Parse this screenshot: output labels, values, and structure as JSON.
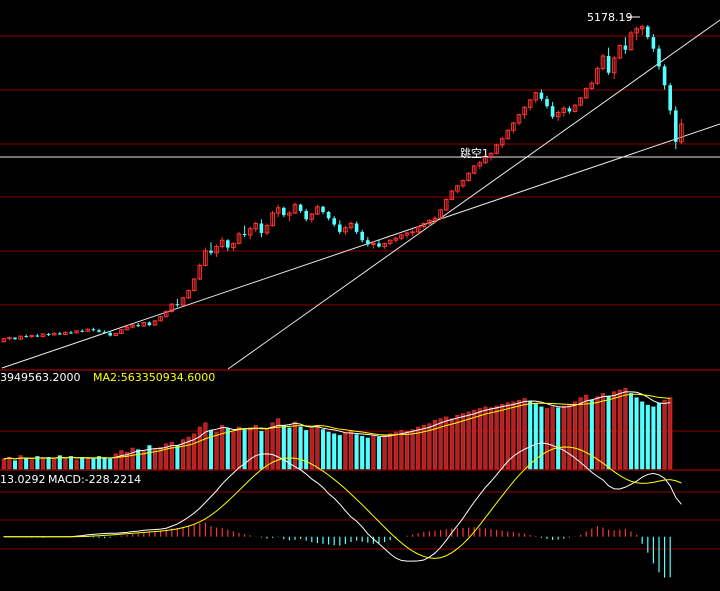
{
  "chart_data": [
    {
      "panel": "price",
      "type": "candlestick",
      "annotations": {
        "high_label": "5178.19",
        "gap_label": "跳空1"
      },
      "trendlines": [
        {
          "name": "long-support",
          "from": [
            0,
            2350
          ],
          "to": [
            160,
            4300
          ]
        },
        {
          "name": "steep-support",
          "from": [
            45,
            1300
          ],
          "to": [
            160,
            5180
          ]
        },
        {
          "name": "gap-level",
          "value": 4000
        }
      ],
      "ohlc": [
        [
          2150,
          2185,
          2145,
          2180
        ],
        [
          2180,
          2200,
          2165,
          2190
        ],
        [
          2190,
          2195,
          2170,
          2175
        ],
        [
          2175,
          2210,
          2170,
          2205
        ],
        [
          2205,
          2220,
          2190,
          2200
        ],
        [
          2200,
          2215,
          2185,
          2210
        ],
        [
          2210,
          2225,
          2195,
          2200
        ],
        [
          2200,
          2230,
          2195,
          2225
        ],
        [
          2225,
          2235,
          2205,
          2215
        ],
        [
          2215,
          2240,
          2210,
          2230
        ],
        [
          2230,
          2245,
          2215,
          2220
        ],
        [
          2220,
          2250,
          2215,
          2240
        ],
        [
          2240,
          2255,
          2225,
          2235
        ],
        [
          2235,
          2260,
          2230,
          2255
        ],
        [
          2255,
          2270,
          2240,
          2250
        ],
        [
          2250,
          2280,
          2245,
          2270
        ],
        [
          2270,
          2285,
          2250,
          2260
        ],
        [
          2260,
          2275,
          2240,
          2245
        ],
        [
          2245,
          2260,
          2225,
          2235
        ],
        [
          2235,
          2250,
          2200,
          2210
        ],
        [
          2210,
          2235,
          2205,
          2230
        ],
        [
          2230,
          2270,
          2225,
          2265
        ],
        [
          2265,
          2300,
          2260,
          2290
        ],
        [
          2290,
          2320,
          2280,
          2310
        ],
        [
          2310,
          2330,
          2290,
          2300
        ],
        [
          2300,
          2340,
          2295,
          2335
        ],
        [
          2335,
          2345,
          2300,
          2310
        ],
        [
          2310,
          2360,
          2305,
          2350
        ],
        [
          2350,
          2400,
          2345,
          2390
        ],
        [
          2390,
          2450,
          2385,
          2440
        ],
        [
          2440,
          2520,
          2430,
          2510
        ],
        [
          2510,
          2560,
          2480,
          2500
        ],
        [
          2500,
          2580,
          2495,
          2570
        ],
        [
          2570,
          2650,
          2560,
          2640
        ],
        [
          2640,
          2760,
          2630,
          2750
        ],
        [
          2750,
          2900,
          2740,
          2880
        ],
        [
          2880,
          3050,
          2870,
          3020
        ],
        [
          3020,
          3100,
          2980,
          3000
        ],
        [
          3000,
          3080,
          2960,
          3060
        ],
        [
          3060,
          3150,
          3040,
          3120
        ],
        [
          3120,
          3130,
          3020,
          3050
        ],
        [
          3050,
          3100,
          3020,
          3090
        ],
        [
          3090,
          3200,
          3080,
          3180
        ],
        [
          3180,
          3260,
          3150,
          3170
        ],
        [
          3170,
          3250,
          3130,
          3230
        ],
        [
          3230,
          3300,
          3200,
          3280
        ],
        [
          3280,
          3320,
          3150,
          3190
        ],
        [
          3190,
          3280,
          3170,
          3260
        ],
        [
          3260,
          3400,
          3250,
          3380
        ],
        [
          3380,
          3460,
          3340,
          3430
        ],
        [
          3430,
          3440,
          3340,
          3360
        ],
        [
          3360,
          3400,
          3300,
          3380
        ],
        [
          3380,
          3480,
          3370,
          3460
        ],
        [
          3460,
          3470,
          3380,
          3400
        ],
        [
          3400,
          3420,
          3300,
          3320
        ],
        [
          3320,
          3380,
          3290,
          3370
        ],
        [
          3370,
          3460,
          3360,
          3440
        ],
        [
          3440,
          3450,
          3370,
          3390
        ],
        [
          3390,
          3400,
          3310,
          3330
        ],
        [
          3330,
          3350,
          3250,
          3270
        ],
        [
          3270,
          3310,
          3180,
          3200
        ],
        [
          3200,
          3260,
          3170,
          3240
        ],
        [
          3240,
          3300,
          3220,
          3280
        ],
        [
          3280,
          3300,
          3180,
          3200
        ],
        [
          3200,
          3220,
          3100,
          3120
        ],
        [
          3120,
          3150,
          3060,
          3080
        ],
        [
          3080,
          3110,
          3040,
          3090
        ],
        [
          3090,
          3120,
          3050,
          3060
        ],
        [
          3060,
          3100,
          3040,
          3090
        ],
        [
          3090,
          3130,
          3070,
          3120
        ],
        [
          3120,
          3150,
          3100,
          3140
        ],
        [
          3140,
          3180,
          3120,
          3170
        ],
        [
          3170,
          3200,
          3140,
          3190
        ],
        [
          3190,
          3220,
          3160,
          3200
        ],
        [
          3200,
          3260,
          3180,
          3250
        ],
        [
          3250,
          3290,
          3230,
          3280
        ],
        [
          3280,
          3320,
          3250,
          3310
        ],
        [
          3310,
          3350,
          3280,
          3330
        ],
        [
          3330,
          3420,
          3320,
          3410
        ],
        [
          3410,
          3520,
          3400,
          3510
        ],
        [
          3510,
          3600,
          3500,
          3590
        ],
        [
          3590,
          3650,
          3570,
          3640
        ],
        [
          3640,
          3700,
          3620,
          3690
        ],
        [
          3690,
          3770,
          3680,
          3760
        ],
        [
          3760,
          3840,
          3750,
          3830
        ],
        [
          3830,
          3880,
          3800,
          3860
        ],
        [
          3860,
          3940,
          3850,
          3920
        ],
        [
          3920,
          3960,
          3880,
          3950
        ],
        [
          3950,
          4040,
          3940,
          4030
        ],
        [
          4030,
          4110,
          4000,
          4090
        ],
        [
          4090,
          4180,
          4080,
          4170
        ],
        [
          4170,
          4250,
          4140,
          4240
        ],
        [
          4240,
          4330,
          4220,
          4320
        ],
        [
          4320,
          4400,
          4280,
          4390
        ],
        [
          4390,
          4470,
          4360,
          4460
        ],
        [
          4460,
          4540,
          4430,
          4530
        ],
        [
          4530,
          4560,
          4450,
          4470
        ],
        [
          4470,
          4500,
          4380,
          4400
        ],
        [
          4400,
          4440,
          4280,
          4300
        ],
        [
          4300,
          4360,
          4260,
          4340
        ],
        [
          4340,
          4400,
          4300,
          4380
        ],
        [
          4380,
          4400,
          4330,
          4350
        ],
        [
          4350,
          4420,
          4340,
          4410
        ],
        [
          4410,
          4490,
          4400,
          4480
        ],
        [
          4480,
          4580,
          4470,
          4570
        ],
        [
          4570,
          4640,
          4550,
          4620
        ],
        [
          4620,
          4780,
          4600,
          4760
        ],
        [
          4760,
          4900,
          4740,
          4880
        ],
        [
          4880,
          4960,
          4700,
          4720
        ],
        [
          4720,
          4880,
          4660,
          4860
        ],
        [
          4860,
          4990,
          4850,
          4980
        ],
        [
          4980,
          5060,
          4900,
          4940
        ],
        [
          4940,
          5120,
          4930,
          5100
        ],
        [
          5100,
          5160,
          5030,
          5140
        ],
        [
          5140,
          5178,
          5080,
          5160
        ],
        [
          5160,
          5176,
          5040,
          5060
        ],
        [
          5060,
          5090,
          4920,
          4950
        ],
        [
          4950,
          4980,
          4750,
          4780
        ],
        [
          4780,
          4800,
          4560,
          4600
        ],
        [
          4600,
          4620,
          4320,
          4360
        ],
        [
          4360,
          4400,
          3990,
          4060
        ],
        [
          4060,
          4280,
          4040,
          4230
        ]
      ],
      "ylim": [
        1900,
        5300
      ]
    },
    {
      "panel": "volume",
      "type": "bar",
      "legend": {
        "ma1": "3949563.2000",
        "ma2": "MA2:563350934.6000"
      },
      "ylim": [
        0,
        100
      ],
      "values": [
        12,
        14,
        10,
        16,
        13,
        11,
        15,
        12,
        14,
        13,
        16,
        12,
        15,
        11,
        14,
        13,
        12,
        15,
        13,
        12,
        18,
        22,
        20,
        25,
        23,
        21,
        28,
        24,
        26,
        30,
        32,
        28,
        35,
        38,
        42,
        50,
        55,
        46,
        44,
        52,
        48,
        44,
        50,
        47,
        49,
        52,
        45,
        48,
        55,
        60,
        52,
        49,
        56,
        50,
        46,
        48,
        52,
        47,
        44,
        42,
        40,
        43,
        45,
        41,
        39,
        37,
        40,
        38,
        40,
        42,
        44,
        46,
        45,
        47,
        50,
        52,
        54,
        58,
        60,
        62,
        60,
        64,
        66,
        68,
        70,
        72,
        74,
        73,
        75,
        77,
        79,
        80,
        82,
        84,
        80,
        78,
        74,
        72,
        74,
        73,
        75,
        77,
        80,
        85,
        88,
        82,
        86,
        90,
        87,
        92,
        94,
        96,
        90,
        85,
        80,
        76,
        74,
        78,
        82,
        85
      ],
      "up": [
        1,
        1,
        0,
        1,
        0,
        1,
        0,
        1,
        0,
        1,
        0,
        1,
        0,
        1,
        0,
        1,
        0,
        0,
        0,
        0,
        1,
        1,
        1,
        1,
        0,
        1,
        0,
        1,
        1,
        1,
        1,
        0,
        1,
        1,
        1,
        1,
        1,
        0,
        1,
        1,
        0,
        1,
        1,
        0,
        1,
        1,
        0,
        1,
        1,
        1,
        0,
        0,
        1,
        0,
        0,
        1,
        1,
        0,
        0,
        0,
        0,
        1,
        1,
        0,
        0,
        0,
        1,
        0,
        1,
        1,
        1,
        1,
        1,
        1,
        1,
        1,
        1,
        1,
        1,
        1,
        1,
        1,
        1,
        1,
        1,
        1,
        1,
        1,
        1,
        1,
        1,
        1,
        1,
        1,
        0,
        0,
        0,
        1,
        1,
        0,
        1,
        1,
        1,
        1,
        1,
        0,
        1,
        1,
        0,
        1,
        1,
        1,
        0,
        0,
        0,
        0,
        0,
        0,
        1,
        1
      ],
      "ma1": [],
      "ma2": []
    },
    {
      "panel": "macd",
      "type": "bar+line",
      "legend": {
        "dif": "13.0292",
        "macd": "MACD:-228.2214"
      },
      "ylim": [
        -300,
        280
      ],
      "hist": [
        5,
        4,
        2,
        0,
        -3,
        -5,
        -4,
        -6,
        -3,
        -2,
        0,
        2,
        3,
        2,
        0,
        -2,
        -4,
        -6,
        -8,
        -5,
        2,
        6,
        10,
        14,
        18,
        22,
        28,
        32,
        36,
        40,
        45,
        50,
        55,
        62,
        70,
        76,
        80,
        60,
        52,
        48,
        40,
        30,
        22,
        14,
        8,
        2,
        -4,
        -10,
        -6,
        -2,
        -14,
        -20,
        -18,
        -12,
        -22,
        -30,
        -36,
        -40,
        -44,
        -48,
        -50,
        -42,
        -30,
        -22,
        -28,
        -34,
        -40,
        -36,
        -30,
        -20,
        -10,
        0,
        6,
        12,
        20,
        26,
        30,
        34,
        38,
        42,
        46,
        48,
        50,
        52,
        54,
        50,
        46,
        42,
        38,
        34,
        30,
        26,
        22,
        18,
        10,
        4,
        -6,
        -12,
        -18,
        -16,
        -10,
        -4,
        2,
        10,
        30,
        46,
        60,
        52,
        40,
        36,
        40,
        44,
        30,
        10,
        -40,
        -90,
        -150,
        -200,
        -230,
        -228
      ],
      "dif": [],
      "dea": []
    }
  ]
}
